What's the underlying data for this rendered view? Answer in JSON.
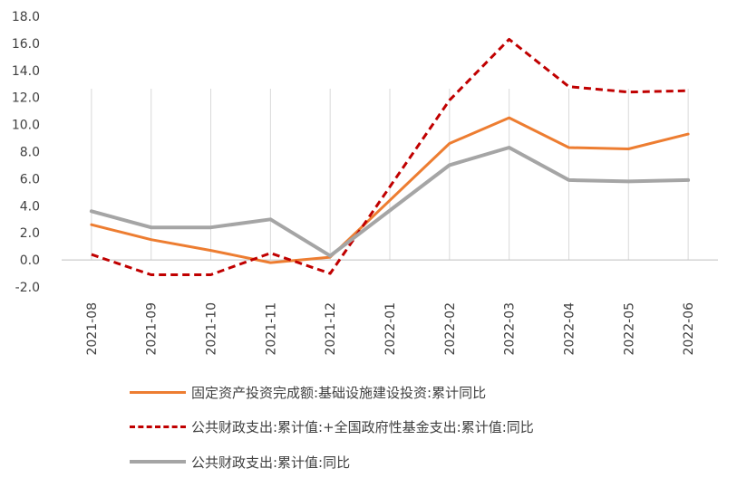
{
  "chart_data": {
    "type": "line",
    "categories": [
      "2021-08",
      "2021-09",
      "2021-10",
      "2021-11",
      "2021-12",
      "2022-01",
      "2022-02",
      "2022-03",
      "2022-04",
      "2022-05",
      "2022-06"
    ],
    "ylim": [
      -2.0,
      18.0
    ],
    "yticks": [
      "18.0",
      "16.0",
      "14.0",
      "12.0",
      "10.0",
      "8.0",
      "6.0",
      "4.0",
      "2.0",
      "0.0",
      "-2.0"
    ],
    "grid": "vertical",
    "legend_position": "bottom",
    "series": [
      {
        "name": "固定资产投资完成额:基础设施建设投资:累计同比",
        "color": "#ED7D31",
        "style": "solid",
        "values": [
          2.6,
          1.5,
          0.7,
          -0.2,
          0.2,
          null,
          8.6,
          10.5,
          8.3,
          8.2,
          9.3
        ]
      },
      {
        "name": "公共财政支出:累计值:+全国政府性基金支出:累计值:同比",
        "color": "#C00000",
        "style": "dashed",
        "values": [
          0.4,
          -1.1,
          -1.1,
          0.5,
          -1.0,
          null,
          11.8,
          16.3,
          12.8,
          12.4,
          12.5
        ]
      },
      {
        "name": "公共财政支出:累计值:同比",
        "color": "#A5A5A5",
        "style": "solid",
        "values": [
          3.6,
          2.4,
          2.4,
          3.0,
          0.3,
          null,
          7.0,
          8.3,
          5.9,
          5.8,
          5.9
        ]
      }
    ]
  }
}
